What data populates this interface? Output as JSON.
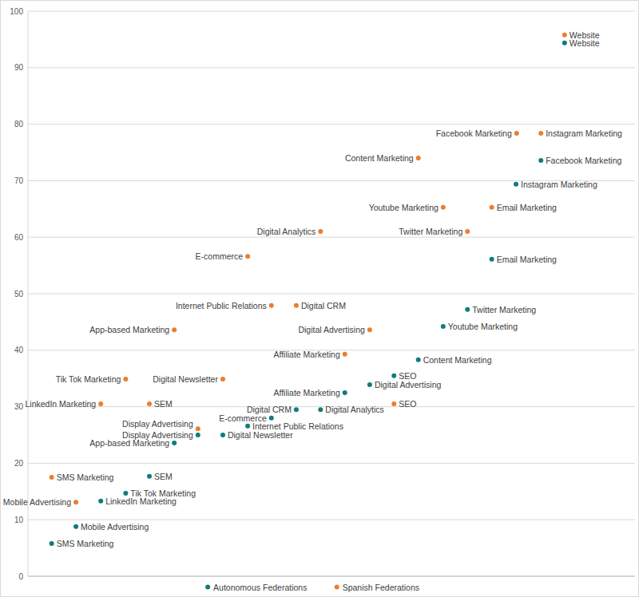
{
  "chart_data": {
    "type": "scatter",
    "xlim": [
      0,
      100
    ],
    "ylim": [
      0,
      100
    ],
    "yticks": [
      0,
      10,
      20,
      30,
      40,
      50,
      60,
      70,
      80,
      90,
      100
    ],
    "grid": true,
    "tick_labels": "y",
    "legend": "bottom",
    "series": [
      {
        "name": "Autonomous Federations",
        "color": "#117c7c",
        "marker": "circle",
        "labels": [
          "Website",
          "Facebook Marketing",
          "Instagram Marketing",
          "Email Marketing",
          "Twitter Marketing",
          "Youtube Marketing",
          "Content Marketing",
          "SEO",
          "Digital Advertising",
          "Affiliate Marketing",
          "Digital CRM",
          "Digital Analytics",
          "E-commerce",
          "Internet Public Relations",
          "Display Advertising",
          "Digital Newsletter",
          "App-based Marketing",
          "SEM",
          "Tik Tok Marketing",
          "LinkedIn Marketing",
          "Mobile Advertising",
          "SMS Marketing"
        ],
        "x": [
          88.4,
          84.5,
          80.4,
          76.4,
          72.4,
          68.4,
          64.3,
          60.3,
          56.3,
          52.2,
          44.2,
          48.2,
          40.1,
          36.2,
          28.0,
          32.1,
          24.1,
          20.0,
          16.1,
          12.0,
          7.9,
          3.9
        ],
        "values": [
          94.4,
          73.6,
          69.4,
          56.1,
          47.2,
          44.2,
          38.3,
          35.5,
          33.9,
          32.5,
          29.5,
          29.5,
          28.0,
          26.6,
          25.0,
          25.0,
          23.6,
          17.7,
          14.7,
          13.3,
          8.8,
          5.8
        ]
      },
      {
        "name": "Spanish Federations",
        "color": "#ed7d31",
        "marker": "circle",
        "labels": [
          "Website",
          "Facebook Marketing",
          "Instagram Marketing",
          "Content Marketing",
          "Youtube Marketing",
          "Email Marketing",
          "Twitter Marketing",
          "Digital Analytics",
          "E-commerce",
          "Internet Public Relations",
          "Digital CRM",
          "App-based Marketing",
          "Digital Advertising",
          "Affiliate Marketing",
          "Tik Tok Marketing",
          "Digital Newsletter",
          "LinkedIn Marketing",
          "SEM",
          "SEO",
          "Display Advertising",
          "SMS Marketing",
          "Mobile Advertising"
        ],
        "x": [
          88.4,
          80.5,
          84.5,
          64.3,
          68.4,
          76.4,
          72.4,
          48.2,
          36.2,
          40.1,
          44.2,
          24.1,
          56.3,
          52.2,
          16.1,
          32.1,
          12.0,
          20.0,
          60.3,
          28.0,
          3.9,
          7.9
        ],
        "values": [
          95.8,
          78.4,
          78.4,
          74.0,
          65.3,
          65.3,
          61.0,
          61.0,
          56.6,
          47.9,
          47.9,
          43.6,
          43.6,
          39.3,
          34.9,
          34.9,
          30.5,
          30.5,
          30.5,
          26.1,
          17.5,
          13.1
        ]
      }
    ]
  }
}
